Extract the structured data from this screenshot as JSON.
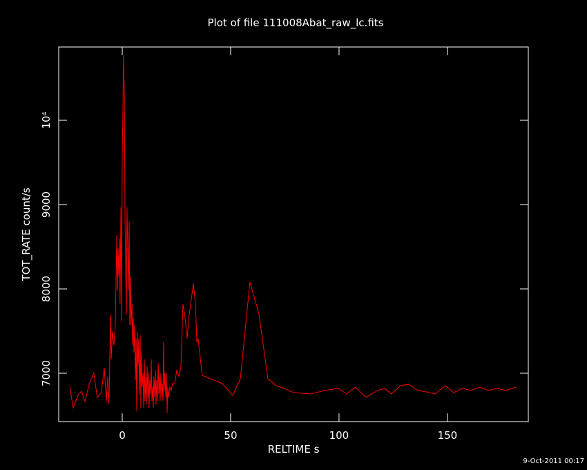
{
  "chart_data": {
    "type": "line",
    "title": "Plot of file 111008Abat_raw_lc.fits",
    "x_label": "RELTIME  s",
    "y_label": "TOT_RATE  count/s",
    "timestamp": "9-Oct-2011 00:17",
    "xlim": [
      -29.3,
      187.3
    ],
    "ylim": [
      6426,
      10869
    ],
    "xticks": [
      0,
      50,
      100,
      150
    ],
    "yticks": [
      7000,
      8000,
      9000,
      {
        "value": 10000,
        "label": "10⁴"
      }
    ],
    "grid": false,
    "series": [
      {
        "color": "#ff0000",
        "x": [
          -24.2,
          -22.6,
          -20.4,
          -18.8,
          -17.2,
          -15.0,
          -13.1,
          -11.5,
          -9.6,
          -8.3,
          -7.3,
          -6.7,
          -6.1,
          -5.4,
          -5.1,
          -4.5,
          -3.8,
          -3.2,
          -2.5,
          -2.2,
          -1.9,
          -1.6,
          -1.3,
          -1.0,
          -0.6,
          -0.3,
          0,
          0.3,
          0.6,
          1.0,
          1.3,
          1.6,
          1.9,
          2.2,
          2.5,
          2.9,
          3.2,
          3.5,
          3.8,
          4.1,
          4.5,
          4.8,
          5.1,
          5.4,
          5.7,
          6.1,
          6.4,
          6.7,
          7.0,
          7.3,
          7.6,
          8.0,
          8.3,
          8.6,
          8.9,
          9.2,
          9.6,
          9.9,
          10.2,
          10.5,
          10.8,
          11.1,
          11.5,
          11.8,
          12.1,
          12.4,
          12.7,
          13.1,
          13.4,
          13.7,
          14.0,
          14.3,
          14.6,
          15.0,
          15.3,
          15.6,
          15.9,
          16.2,
          16.6,
          16.9,
          17.2,
          17.5,
          17.8,
          18.2,
          18.5,
          18.8,
          19.1,
          19.4,
          19.7,
          20.1,
          20.4,
          20.7,
          21.0,
          21.3,
          22.0,
          22.6,
          23.2,
          24.2,
          25.2,
          26.1,
          27.1,
          28.0,
          29.0,
          29.9,
          30.9,
          31.8,
          32.8,
          33.8,
          34.4,
          35.0,
          35.7,
          36.9,
          46.2,
          51.0,
          54.5,
          58.9,
          63.1,
          67.2,
          71.0,
          74.8,
          79.0,
          86.9,
          93.3,
          99.7,
          103.5,
          107.6,
          112.4,
          117.8,
          121.0,
          124.2,
          128.3,
          132.2,
          136.3,
          140.1,
          144.3,
          149.0,
          152.9,
          157.0,
          160.8,
          165.0,
          168.8,
          172.9,
          176.8,
          181.8
        ],
        "values": [
          6836,
          6590,
          6738,
          6787,
          6664,
          6893,
          7000,
          6713,
          6770,
          7066,
          6672,
          6959,
          6631,
          7697,
          7164,
          7492,
          7328,
          7574,
          8639,
          7984,
          8475,
          8148,
          8598,
          7820,
          8967,
          7615,
          9582,
          10074,
          10770,
          10279,
          8803,
          8230,
          7697,
          8967,
          8557,
          7984,
          8803,
          7574,
          8148,
          7574,
          7820,
          7328,
          7656,
          7246,
          7574,
          6918,
          7410,
          6549,
          7492,
          7082,
          7410,
          6754,
          7451,
          6590,
          7246,
          6836,
          7000,
          6590,
          7164,
          6672,
          6959,
          6631,
          7082,
          6713,
          7000,
          6590,
          6918,
          6754,
          7164,
          6672,
          6836,
          6590,
          6959,
          6713,
          7041,
          6631,
          6918,
          6672,
          7123,
          6754,
          6959,
          6672,
          7000,
          6713,
          6877,
          6672,
          7369,
          6795,
          7000,
          6713,
          7000,
          6525,
          6836,
          6713,
          6836,
          6795,
          6877,
          6877,
          7041,
          6959,
          7082,
          7820,
          7656,
          7410,
          7697,
          7861,
          8066,
          7820,
          7369,
          7410,
          7246,
          6975,
          6877,
          6738,
          6934,
          8082,
          7697,
          6934,
          6852,
          6820,
          6770,
          6754,
          6795,
          6820,
          6754,
          6836,
          6713,
          6795,
          6820,
          6754,
          6852,
          6869,
          6795,
          6779,
          6754,
          6852,
          6770,
          6820,
          6795,
          6836,
          6795,
          6820,
          6795,
          6836
        ]
      }
    ]
  }
}
